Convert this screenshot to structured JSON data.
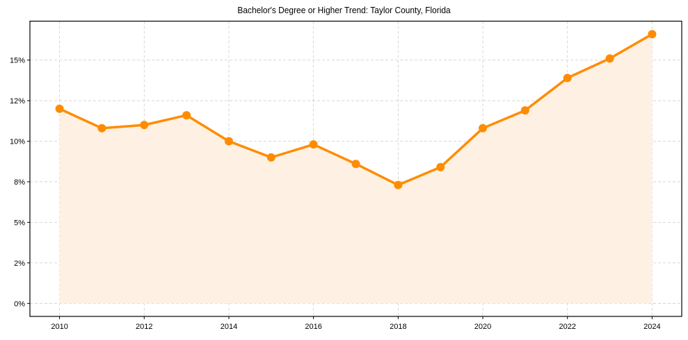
{
  "chart_data": {
    "type": "line",
    "title": "Bachelor's Degree or Higher Trend: Taylor County, Florida",
    "xlabel": "",
    "ylabel": "",
    "x": [
      2010,
      2011,
      2012,
      2013,
      2014,
      2015,
      2016,
      2017,
      2018,
      2019,
      2020,
      2021,
      2022,
      2023,
      2024
    ],
    "series": [
      {
        "name": "Bachelor's Degree or Higher (%)",
        "values": [
          12.0,
          10.8,
          11.0,
          11.6,
          10.0,
          9.0,
          9.8,
          8.6,
          7.3,
          8.4,
          10.8,
          11.9,
          13.9,
          15.1,
          16.6
        ],
        "color": "#FF8C00",
        "fill_color": "#FEF1E3",
        "marker": "circle"
      }
    ],
    "xticks": [
      2010,
      2012,
      2014,
      2016,
      2018,
      2020,
      2022,
      2024
    ],
    "yticks": [
      0,
      2.5,
      5,
      7.5,
      10,
      12.5,
      15
    ],
    "ytick_labels": [
      "0%",
      "2%",
      "5%",
      "8%",
      "10%",
      "12%",
      "15%"
    ],
    "xlim": [
      2009.3,
      2024.7
    ],
    "ylim": [
      -0.8,
      17.4
    ],
    "grid": true,
    "legend": null
  }
}
